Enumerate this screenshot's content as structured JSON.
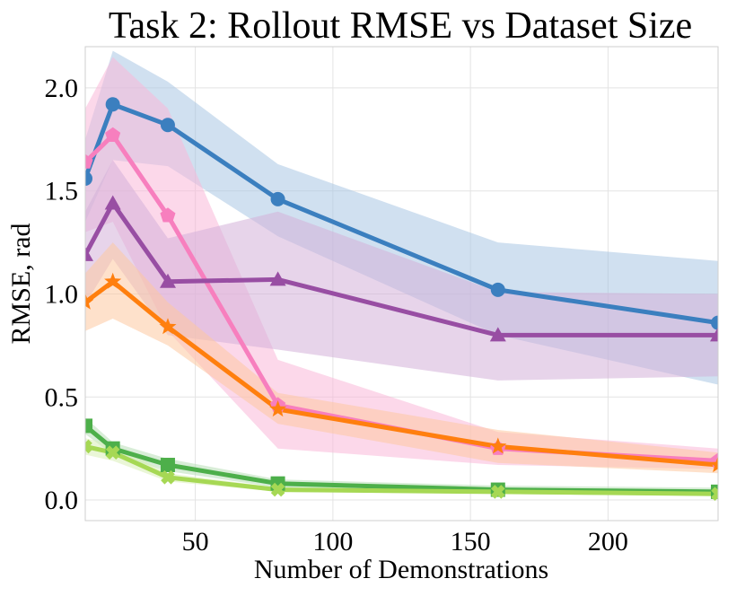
{
  "chart_data": {
    "type": "line",
    "title": "Task 2: Rollout RMSE vs Dataset Size",
    "xlabel": "Number of Demonstrations",
    "ylabel": "RMSE, rad",
    "xlim": [
      10,
      240
    ],
    "ylim": [
      -0.1,
      2.2
    ],
    "xticks": [
      50,
      100,
      150,
      200
    ],
    "yticks": [
      0.0,
      0.5,
      1.0,
      1.5,
      2.0
    ],
    "xtick_labels": [
      "50",
      "100",
      "150",
      "200"
    ],
    "ytick_labels": [
      "0.0",
      "0.5",
      "1.0",
      "1.5",
      "2.0"
    ],
    "grid": true,
    "legend": "none",
    "x": [
      10,
      20,
      40,
      80,
      160,
      240
    ],
    "series": [
      {
        "name": "blue-circle",
        "color": "#3b7fbf",
        "band_color": "#a9c6e3",
        "marker": "circle",
        "values": [
          1.56,
          1.92,
          1.82,
          1.46,
          1.02,
          0.86
        ],
        "lower": [
          1.35,
          1.65,
          1.62,
          1.28,
          0.8,
          0.56
        ],
        "upper": [
          1.75,
          2.18,
          2.03,
          1.63,
          1.25,
          1.16
        ]
      },
      {
        "name": "pink-pentagon",
        "color": "#f77fbe",
        "band_color": "#f9b8d9",
        "marker": "pentagon",
        "values": [
          1.64,
          1.77,
          1.38,
          0.46,
          0.25,
          0.19
        ],
        "lower": [
          1.3,
          1.35,
          0.82,
          0.25,
          0.17,
          0.15
        ],
        "upper": [
          1.9,
          2.15,
          1.9,
          0.68,
          0.33,
          0.25
        ]
      },
      {
        "name": "purple-triangle",
        "color": "#984ea3",
        "band_color": "#d3b0d8",
        "marker": "triangle",
        "values": [
          1.19,
          1.44,
          1.06,
          1.07,
          0.8,
          0.8
        ],
        "lower": [
          0.95,
          1.17,
          0.8,
          0.73,
          0.58,
          0.6
        ],
        "upper": [
          1.4,
          1.65,
          1.27,
          1.4,
          1.01,
          1.0
        ]
      },
      {
        "name": "orange-star",
        "color": "#ff7f0e",
        "band_color": "#fdc9a0",
        "marker": "star",
        "values": [
          0.96,
          1.06,
          0.84,
          0.44,
          0.26,
          0.17
        ],
        "lower": [
          0.82,
          0.88,
          0.75,
          0.37,
          0.18,
          0.13
        ],
        "upper": [
          1.1,
          1.25,
          0.96,
          0.52,
          0.34,
          0.23
        ]
      },
      {
        "name": "green-square",
        "color": "#4daf4a",
        "band_color": "#b8dfb6",
        "marker": "square",
        "values": [
          0.36,
          0.25,
          0.17,
          0.08,
          0.05,
          0.04
        ],
        "lower": [
          0.32,
          0.22,
          0.14,
          0.06,
          0.03,
          0.02
        ],
        "upper": [
          0.4,
          0.28,
          0.2,
          0.1,
          0.07,
          0.06
        ]
      },
      {
        "name": "lightgreen-cross",
        "color": "#a6d854",
        "band_color": "#d8eeb6",
        "marker": "cross",
        "values": [
          0.26,
          0.23,
          0.11,
          0.05,
          0.04,
          0.03
        ],
        "lower": [
          0.22,
          0.19,
          0.09,
          0.04,
          0.03,
          0.02
        ],
        "upper": [
          0.3,
          0.27,
          0.13,
          0.06,
          0.05,
          0.04
        ]
      }
    ]
  }
}
